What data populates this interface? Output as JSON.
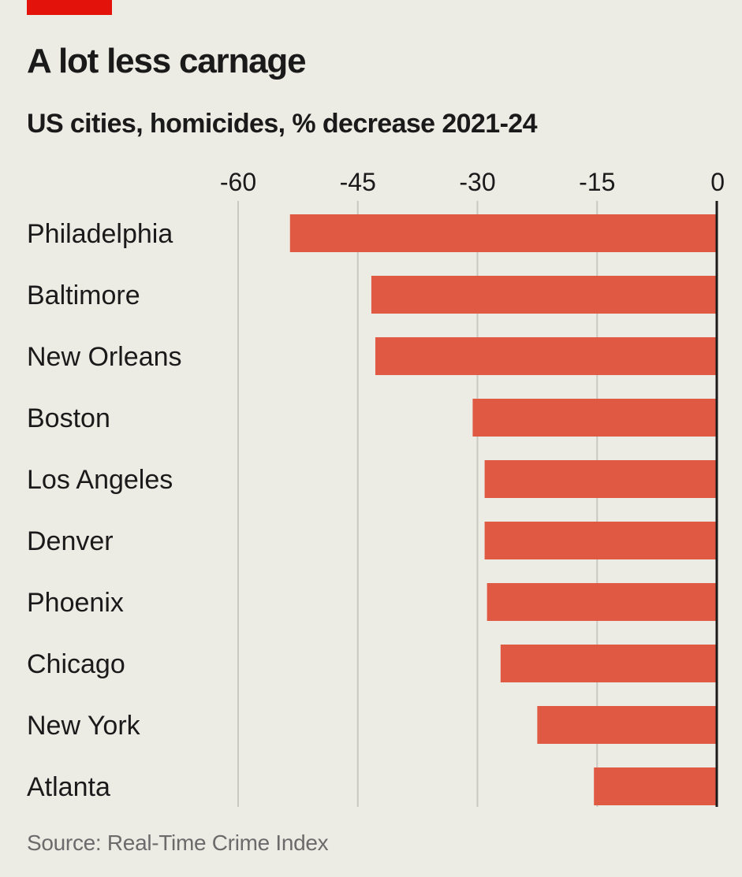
{
  "header": {
    "title": "A lot less carnage",
    "subtitle": "US cities, homicides, % decrease 2021-24"
  },
  "footer": {
    "source": "Source: Real-Time Crime Index"
  },
  "colors": {
    "accent": "#e3120b",
    "bar": "#e05a43",
    "gridline": "#c9c8c1",
    "axis": "#1a1a1a",
    "background": "#ecebe4"
  },
  "chart_data": {
    "type": "bar",
    "orientation": "horizontal",
    "title": "A lot less carnage",
    "subtitle": "US cities, homicides, % decrease 2021-24",
    "categories": [
      "Philadelphia",
      "Baltimore",
      "New Orleans",
      "Boston",
      "Los Angeles",
      "Denver",
      "Phoenix",
      "Chicago",
      "New York",
      "Atlanta"
    ],
    "values": [
      -53.5,
      -43.3,
      -42.8,
      -30.6,
      -29.1,
      -29.1,
      -28.8,
      -27.1,
      -22.5,
      -15.4
    ],
    "xlim": [
      -60,
      0
    ],
    "xticks": [
      -60,
      -45,
      -30,
      -15,
      0
    ],
    "xtick_labels": [
      "-60",
      "-45",
      "-30",
      "-15",
      "0"
    ],
    "xaxis_position": "top",
    "grid": true,
    "legend": "none"
  }
}
